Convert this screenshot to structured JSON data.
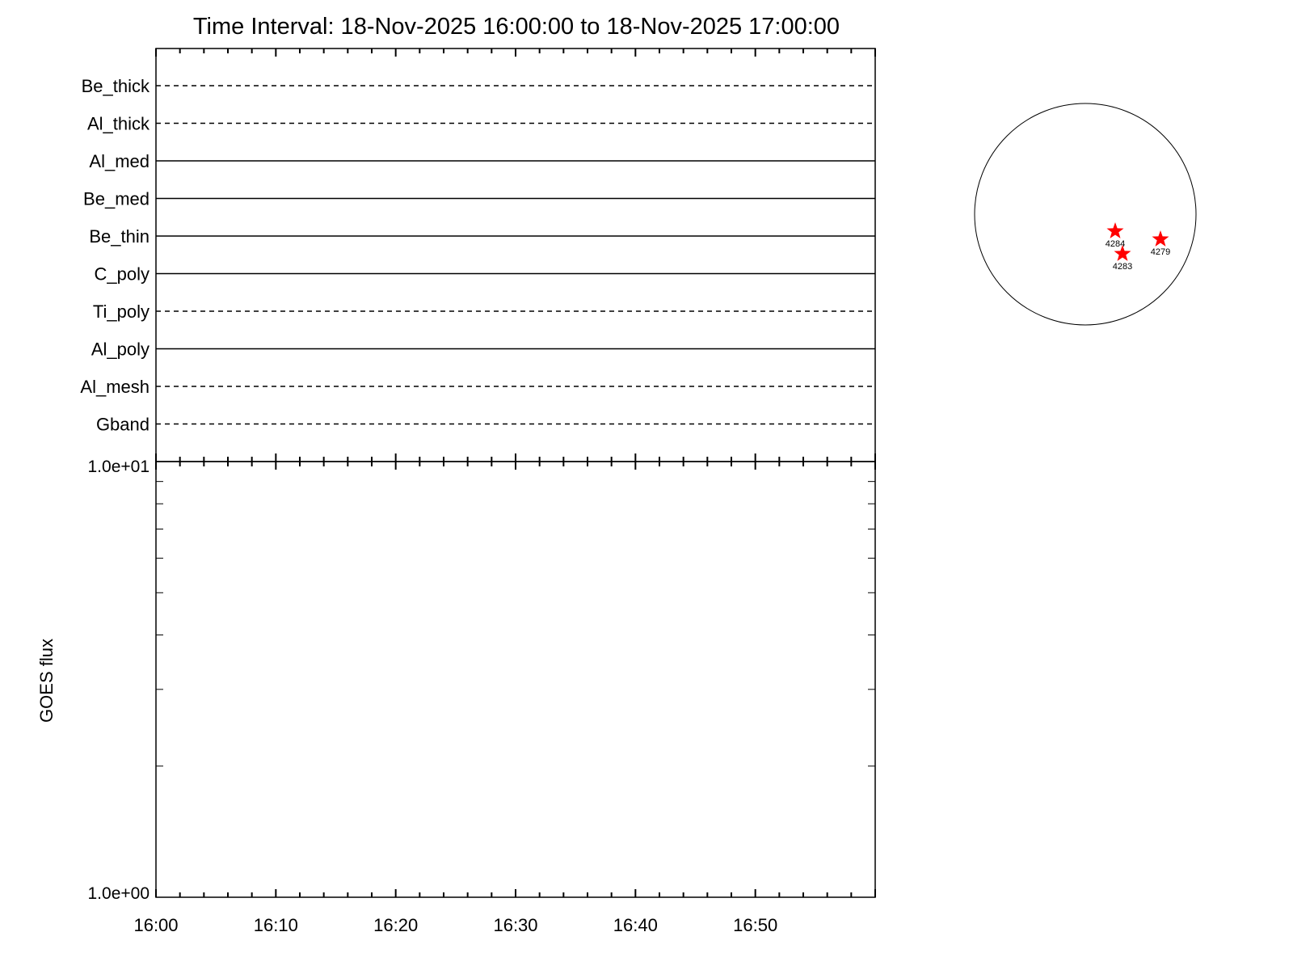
{
  "chart_data": [
    {
      "type": "line",
      "title": "Time Interval: 18-Nov-2025 16:00:00 to 18-Nov-2025 17:00:00",
      "panel": "filter timeline",
      "rows": [
        {
          "label": "Be_thick",
          "style": "dashed"
        },
        {
          "label": "Al_thick",
          "style": "dashed"
        },
        {
          "label": "Al_med",
          "style": "solid"
        },
        {
          "label": "Be_med",
          "style": "solid"
        },
        {
          "label": "Be_thin",
          "style": "solid"
        },
        {
          "label": "C_poly",
          "style": "solid"
        },
        {
          "label": "Ti_poly",
          "style": "dashed"
        },
        {
          "label": "Al_poly",
          "style": "solid"
        },
        {
          "label": "Al_mesh",
          "style": "dashed"
        },
        {
          "label": "Gband",
          "style": "dashed"
        }
      ],
      "xlim": [
        "16:00",
        "17:00"
      ]
    },
    {
      "type": "line",
      "ylabel": "GOES flux",
      "yscale": "log",
      "ylim": [
        1,
        10
      ],
      "ytick_labels": [
        "1.0e+01",
        "1.0e+00"
      ],
      "xtick_labels": [
        "16:00",
        "16:10",
        "16:20",
        "16:30",
        "16:40",
        "16:50"
      ],
      "xlim": [
        "16:00",
        "17:00"
      ],
      "minor_tick_minutes": 2,
      "series": []
    },
    {
      "type": "scatter",
      "panel": "solar disk",
      "marker": "star",
      "marker_color": "#ff0000",
      "points": [
        {
          "label": "4284"
        },
        {
          "label": "4283"
        },
        {
          "label": "4279"
        }
      ]
    }
  ]
}
